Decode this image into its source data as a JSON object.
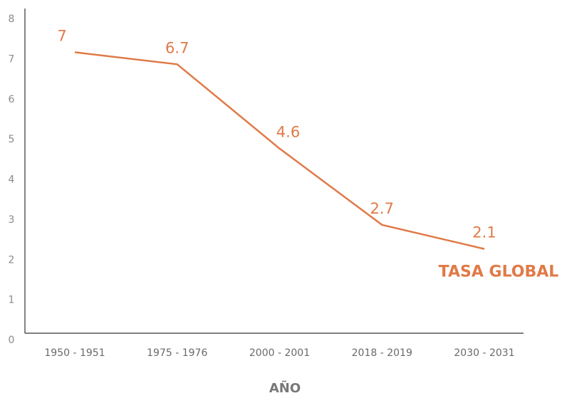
{
  "chart_data": {
    "type": "line",
    "x_label": "AÑO",
    "categories": [
      "1950 - 1951",
      "1975 - 1976",
      "2000 - 2001",
      "2018 - 2019",
      "2030 - 2031"
    ],
    "series": [
      {
        "name": "TASA GLOBAL",
        "color": "#e07a47",
        "values": [
          7,
          6.7,
          4.6,
          2.7,
          2.1
        ]
      }
    ],
    "ylim": [
      0,
      8
    ],
    "yticks": [
      0,
      1,
      2,
      3,
      4,
      5,
      6,
      7,
      8
    ],
    "grid": false,
    "data_labels": true
  }
}
